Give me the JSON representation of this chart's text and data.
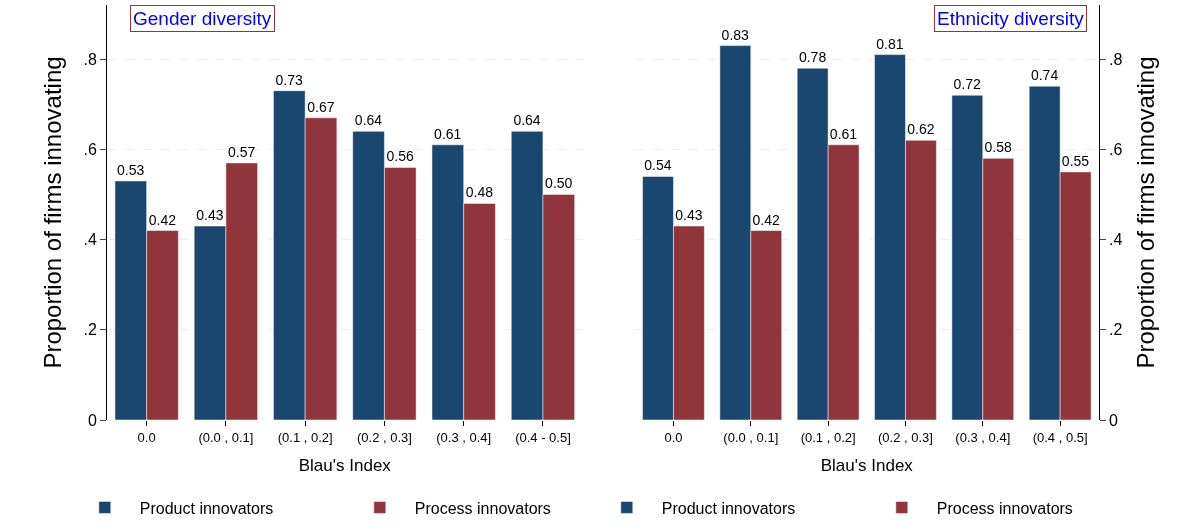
{
  "chart_data": [
    {
      "type": "bar",
      "title": "Gender diversity",
      "xlabel": "Blau's Index",
      "ylabel": "Proportion of firms innovating",
      "categories": [
        "0.0",
        "(0.0 , 0.1]",
        "(0.1 , 0.2]",
        "(0.2 , 0.3]",
        "(0.3 , 0.4]",
        "(0.4 - 0.5]"
      ],
      "series": [
        {
          "name": "Product innovators",
          "color": "#1a476f",
          "values": [
            0.53,
            0.43,
            0.73,
            0.64,
            0.61,
            0.64
          ],
          "value_labels": [
            "0.53",
            "0.43",
            "0.73",
            "0.64",
            "0.61",
            "0.64"
          ]
        },
        {
          "name": "Process innovators",
          "color": "#90353b",
          "values": [
            0.42,
            0.57,
            0.67,
            0.56,
            0.48,
            0.5
          ],
          "value_labels": [
            "0.42",
            "0.57",
            "0.67",
            "0.56",
            "0.48",
            "0.50"
          ]
        }
      ],
      "ylim": [
        0,
        0.92
      ],
      "yticks": [
        0,
        {
          "value": 0.2,
          "label": ".2"
        },
        {
          "value": 0.4,
          "label": ".4"
        },
        {
          "value": 0.6,
          "label": ".6"
        },
        {
          "value": 0.8,
          "label": ".8"
        }
      ],
      "grid": "y",
      "legend": "bottom"
    },
    {
      "type": "bar",
      "title": "Ethnicity diversity",
      "xlabel": "Blau's Index",
      "y2label": "Proportion of firms innovating",
      "categories": [
        "0.0",
        "(0.0 , 0.1]",
        "(0.1 , 0.2]",
        "(0.2 , 0.3]",
        "(0.3 , 0.4]",
        "(0.4 , 0.5]"
      ],
      "series": [
        {
          "name": "Product innovators",
          "color": "#1a476f",
          "axis": "y2",
          "values": [
            0.54,
            0.83,
            0.78,
            0.81,
            0.72,
            0.74
          ],
          "value_labels": [
            "0.54",
            "0.83",
            "0.78",
            "0.81",
            "0.72",
            "0.74"
          ]
        },
        {
          "name": "Process innovators",
          "color": "#90353b",
          "axis": "y2",
          "values": [
            0.43,
            0.42,
            0.61,
            0.62,
            0.58,
            0.55
          ],
          "value_labels": [
            "0.43",
            "0.42",
            "0.61",
            "0.62",
            "0.58",
            "0.55"
          ]
        }
      ],
      "y2lim": [
        0,
        0.92
      ],
      "y2ticks": [
        0,
        {
          "value": 0.2,
          "label": ".2"
        },
        {
          "value": 0.4,
          "label": ".4"
        },
        {
          "value": 0.6,
          "label": ".6"
        },
        {
          "value": 0.8,
          "label": ".8"
        }
      ],
      "grid": "y",
      "legend": "bottom"
    }
  ]
}
